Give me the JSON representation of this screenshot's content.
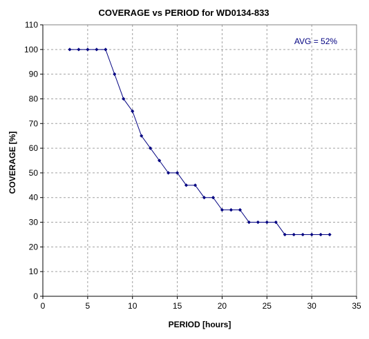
{
  "chart_data": {
    "type": "line",
    "title": "COVERAGE vs PERIOD for WD0134-833",
    "xlabel": "PERIOD [hours]",
    "ylabel": "COVERAGE [%]",
    "xlim": [
      0,
      35
    ],
    "ylim": [
      0,
      110
    ],
    "xticks": [
      0,
      5,
      10,
      15,
      20,
      25,
      30,
      35
    ],
    "yticks": [
      0,
      10,
      20,
      30,
      40,
      50,
      60,
      70,
      80,
      90,
      100,
      110
    ],
    "grid": true,
    "line_color": "#000080",
    "annotation": {
      "text": "AVG = 52%",
      "color": "#000080",
      "position": "top-right"
    },
    "series": [
      {
        "x": [
          3,
          4,
          5,
          6,
          7,
          8,
          9,
          10,
          11,
          12,
          13,
          14,
          15,
          16,
          17,
          18,
          19,
          20,
          21,
          22,
          23,
          24,
          25,
          26,
          27,
          28,
          29,
          30,
          31,
          32
        ],
        "y": [
          100,
          100,
          100,
          100,
          100,
          90,
          80,
          75,
          65,
          60,
          55,
          50,
          50,
          45,
          45,
          40,
          40,
          35,
          35,
          35,
          30,
          30,
          30,
          30,
          25,
          25,
          25,
          25,
          25,
          25
        ]
      }
    ]
  }
}
